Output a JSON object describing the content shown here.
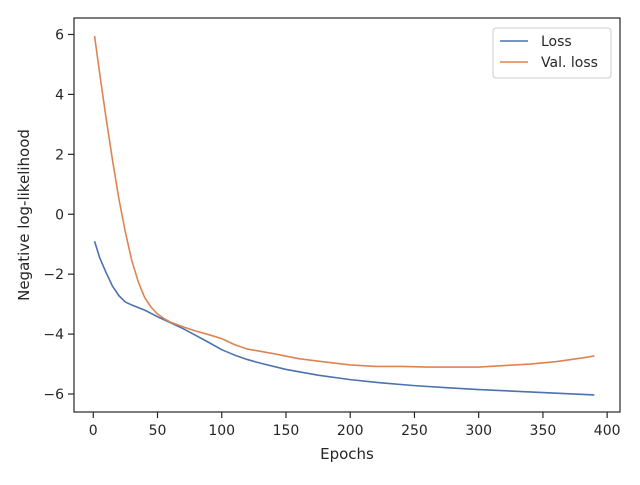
{
  "chart_data": {
    "type": "line",
    "title": "",
    "xlabel": "Epochs",
    "ylabel": "Negative log-likelihood",
    "xlim": [
      -15,
      410
    ],
    "ylim": [
      -6.6,
      6.55
    ],
    "xticks": [
      0,
      50,
      100,
      150,
      200,
      250,
      300,
      350,
      400
    ],
    "yticks": [
      -6,
      -4,
      -2,
      0,
      2,
      4,
      6
    ],
    "grid": false,
    "legend_position": "top-right",
    "series": [
      {
        "name": "Loss",
        "color": "#4c72b0",
        "x": [
          1,
          5,
          10,
          15,
          20,
          25,
          30,
          40,
          50,
          60,
          70,
          80,
          90,
          100,
          110,
          120,
          130,
          150,
          175,
          200,
          225,
          250,
          275,
          300,
          325,
          350,
          375,
          390
        ],
        "y": [
          -0.9,
          -1.45,
          -1.95,
          -2.4,
          -2.72,
          -2.93,
          -3.03,
          -3.2,
          -3.42,
          -3.62,
          -3.82,
          -4.05,
          -4.28,
          -4.52,
          -4.7,
          -4.85,
          -4.97,
          -5.18,
          -5.37,
          -5.52,
          -5.63,
          -5.72,
          -5.79,
          -5.85,
          -5.9,
          -5.95,
          -6.0,
          -6.03
        ]
      },
      {
        "name": "Val. loss",
        "color": "#dd8452",
        "x": [
          1,
          5,
          10,
          15,
          20,
          25,
          30,
          35,
          40,
          45,
          50,
          55,
          60,
          70,
          80,
          90,
          100,
          110,
          120,
          140,
          160,
          180,
          200,
          220,
          240,
          260,
          280,
          300,
          320,
          340,
          360,
          380,
          390
        ],
        "y": [
          5.95,
          4.7,
          3.2,
          1.8,
          0.5,
          -0.6,
          -1.55,
          -2.25,
          -2.78,
          -3.1,
          -3.33,
          -3.48,
          -3.6,
          -3.76,
          -3.9,
          -4.02,
          -4.15,
          -4.35,
          -4.5,
          -4.65,
          -4.82,
          -4.93,
          -5.03,
          -5.08,
          -5.08,
          -5.1,
          -5.1,
          -5.1,
          -5.05,
          -5.0,
          -4.92,
          -4.8,
          -4.73
        ]
      }
    ]
  }
}
